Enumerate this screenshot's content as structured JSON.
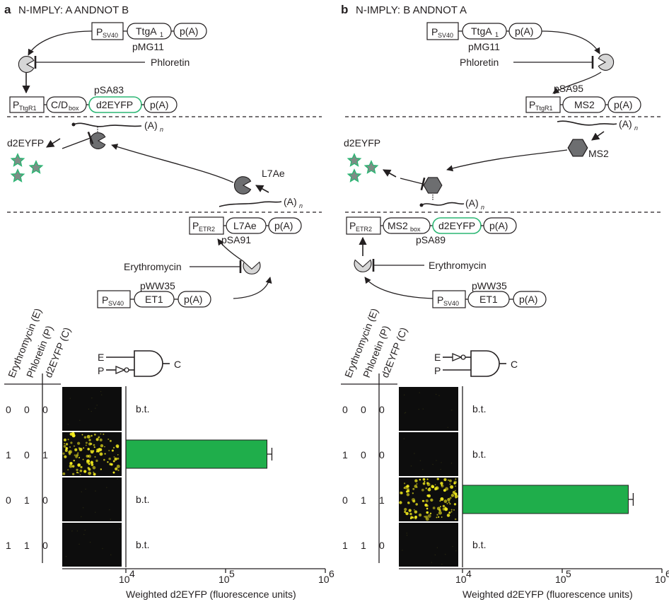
{
  "panel_a": {
    "letter": "a",
    "title": "N-IMPLY: A ANDNOT B",
    "promoter_sv40": "P",
    "sv40_sub": "SV40",
    "ttga": "TtgA",
    "ttga_sub": "1",
    "pA": "p(A)",
    "pmg11": "pMG11",
    "phloretin": "Phloretin",
    "promoter_ttgr1": "P",
    "ttgr1_sub": "TtgR1",
    "cd_box": "C/D",
    "cd_sub": "box",
    "d2eyfp": "d2EYFP",
    "psa83": "pSA83",
    "polya": "(A)",
    "polya_n": "n",
    "d2eyfp_label": "d2EYFP",
    "l7ae": "L7Ae",
    "promoter_etr2": "P",
    "etr2_sub": "ETR2",
    "psa91": "pSA91",
    "erythromycin": "Erythromycin",
    "pww35": "pWW35",
    "et1": "ET1"
  },
  "panel_b": {
    "letter": "b",
    "title": "N-IMPLY: B ANDNOT A",
    "promoter_sv40": "P",
    "sv40_sub": "SV40",
    "ttga": "TtgA",
    "ttga_sub": "1",
    "pA": "p(A)",
    "pmg11": "pMG11",
    "phloretin": "Phloretin",
    "psa95": "pSA95",
    "promoter_ttgr1": "P",
    "ttgr1_sub": "TtgR1",
    "ms2": "MS2",
    "polya": "(A)",
    "polya_n": "n",
    "ms2_label": "MS2",
    "d2eyfp_label": "d2EYFP",
    "promoter_etr2": "P",
    "etr2_sub": "ETR2",
    "ms2_box": "MS2",
    "ms2_box_sub": "box",
    "d2eyfp": "d2EYFP",
    "psa89": "pSA89",
    "erythromycin": "Erythromycin",
    "pww35": "pWW35",
    "et1": "ET1"
  },
  "truth_headers": [
    "Erythromycin (E)",
    "Phloretin (P)",
    "d2EYFP (C)"
  ],
  "gate": {
    "in1": "E",
    "in2": "P",
    "out": "C"
  },
  "truth_a": [
    [
      "0",
      "0",
      "0"
    ],
    [
      "1",
      "0",
      "1"
    ],
    [
      "0",
      "1",
      "0"
    ],
    [
      "1",
      "1",
      "0"
    ]
  ],
  "truth_b": [
    [
      "0",
      "0",
      "0"
    ],
    [
      "1",
      "0",
      "0"
    ],
    [
      "0",
      "1",
      "1"
    ],
    [
      "1",
      "1",
      "0"
    ]
  ],
  "below_threshold": "b.t.",
  "axis_ticks": [
    "10",
    "10",
    "10"
  ],
  "axis_exps": [
    "4",
    "5",
    "6"
  ],
  "xlabel": "Weighted d2EYFP (fluorescence units)",
  "colors": {
    "bar": "#1fae4b",
    "reporter": "#2bb673",
    "cell_bg": "#0d0d0d",
    "fluor": "#f2ea1d"
  },
  "chart_data": [
    {
      "type": "bar",
      "orientation": "horizontal",
      "xscale": "log",
      "xlim": [
        10000,
        1000000
      ],
      "categories": [
        "E=0,P=0",
        "E=1,P=0",
        "E=0,P=1",
        "E=1,P=1"
      ],
      "values": [
        null,
        260000,
        null,
        null
      ],
      "bt_rows": [
        0,
        2,
        3
      ],
      "xlabel": "Weighted d2EYFP (fluorescence units)"
    },
    {
      "type": "bar",
      "orientation": "horizontal",
      "xscale": "log",
      "xlim": [
        10000,
        1000000
      ],
      "categories": [
        "E=0,P=0",
        "E=1,P=0",
        "E=0,P=1",
        "E=1,P=1"
      ],
      "values": [
        null,
        null,
        460000,
        null
      ],
      "bt_rows": [
        0,
        1,
        3
      ],
      "xlabel": "Weighted d2EYFP (fluorescence units)"
    }
  ]
}
